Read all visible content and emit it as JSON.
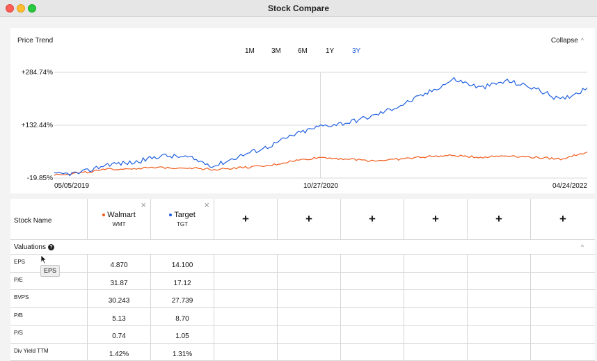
{
  "window": {
    "title": "Stock Compare"
  },
  "chart_panel": {
    "label": "Price Trend",
    "ranges": [
      "1M",
      "3M",
      "6M",
      "1Y",
      "3Y"
    ],
    "active_range": "3Y",
    "collapse_label": "Collapse"
  },
  "chart_data": {
    "type": "line",
    "ytick_labels": [
      "+284.74%",
      "+132.44%",
      "-19.85%"
    ],
    "yticks": [
      284.74,
      132.44,
      -19.85
    ],
    "ylim": [
      -19.85,
      284.74
    ],
    "xtick_labels": [
      "05/05/2019",
      "10/27/2020",
      "04/24/2022"
    ],
    "x": [
      0,
      0.05,
      0.1,
      0.15,
      0.2,
      0.25,
      0.3,
      0.35,
      0.4,
      0.45,
      0.5,
      0.55,
      0.6,
      0.65,
      0.7,
      0.75,
      0.8,
      0.85,
      0.9,
      0.95,
      1.0
    ],
    "series": [
      {
        "name": "Target",
        "color": "#1f5fe0",
        "values": [
          -10,
          -5,
          20,
          25,
          45,
          40,
          15,
          45,
          70,
          105,
          130,
          140,
          160,
          190,
          225,
          265,
          240,
          260,
          240,
          205,
          240
        ]
      },
      {
        "name": "Walmart",
        "color": "#f05a1a",
        "values": [
          -10,
          -5,
          5,
          8,
          10,
          10,
          5,
          10,
          15,
          30,
          40,
          35,
          30,
          35,
          42,
          45,
          40,
          45,
          40,
          35,
          55
        ]
      }
    ]
  },
  "table": {
    "stock_name_label": "Stock Name",
    "stocks": [
      {
        "name": "Walmart",
        "ticker": "WMT",
        "color": "#f05a1a"
      },
      {
        "name": "Target",
        "ticker": "TGT",
        "color": "#1f5fe0"
      }
    ],
    "close_glyph": "×",
    "add_glyph": "+",
    "section": "Valuations",
    "help_glyph": "?",
    "section_chevron": "^",
    "metrics": [
      {
        "label": "EPS",
        "values": [
          "4.870",
          "14.100"
        ]
      },
      {
        "label": "P/E",
        "values": [
          "31.87",
          "17.12"
        ]
      },
      {
        "label": "BVPS",
        "values": [
          "30.243",
          "27.739"
        ]
      },
      {
        "label": "P/B",
        "values": [
          "5.13",
          "8.70"
        ]
      },
      {
        "label": "P/S",
        "values": [
          "0.74",
          "1.05"
        ]
      },
      {
        "label": "Div Yield TTM",
        "values": [
          "1.42%",
          "1.31%"
        ]
      }
    ]
  },
  "tooltip": {
    "text": "EPS"
  }
}
